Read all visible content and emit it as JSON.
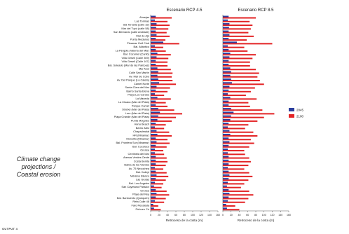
{
  "caption": {
    "lines": [
      "Climate change",
      "projections /",
      "Coastal erosion"
    ]
  },
  "footer": "OUTPUT 4",
  "colors": {
    "s2045": "#2b3f9e",
    "s2100": "#e32426",
    "axis": "#555555",
    "grid": "#999999"
  },
  "chart_data": {
    "type": "bar",
    "orientation": "horizontal",
    "xlabel": "Retroceso de la costa (m)",
    "xlim": [
      0,
      160
    ],
    "xticks": [
      0,
      20,
      40,
      60,
      80,
      100,
      120,
      140,
      160
    ],
    "legend_position": "right",
    "categories": [
      "Almejas",
      "Las Toninas",
      "Sta Teresita (calle 32)",
      "Mar del Tuyú (calle 58)",
      "San Bernardo (calle Andrade)",
      "Mar de Ajó",
      "Punta Medanos",
      "Pinamar Golf Club",
      "Bal. Atlántico",
      "La Pérgola (Valeria del Mar)",
      "Bal. Cozumel (Cariló)",
      "Villa Gesell (Calle 309)",
      "Villa Gesell (Calle 107)",
      "Bal. Soleado (Mar de las Pampas)",
      "Mar Azul",
      "Calle San Martín",
      "Av. Mar de Cobo",
      "Av. Del Parque (La Caleta)",
      "Camet Norte",
      "Santa Clara del Mar",
      "Barrio Santa Elena",
      "Playa Los Cardos",
      "La Maneda",
      "La Cloaca (Mar del Plata)",
      "Parque Camet",
      "Strobel (Mar del Plata)",
      "Luro (Mar del Plata)",
      "Playa Grande (Mar del Plata)",
      "Punta Mogotes",
      "Honu Beach",
      "Barrio Alfar",
      "Chapadmalal",
      "HR (Miramar)",
      "Monolito (Miramar)",
      "Bal. Frontera Sur (Miramar)",
      "Bal. Cocoloco",
      "Orense",
      "Centinela del Mar",
      "Arenas Verdes Oeste",
      "Costa Bonita",
      "Bahía de los Vientos",
      "Av. 75 Necochea",
      "Bal. Kabryl",
      "Médano Blanco",
      "Las Grutas",
      "Bal. Los Angeles",
      "San Cayetano Parador",
      "Orense",
      "Playa del Rey",
      "Bal. Barlovento (Quequén)",
      "Reta Calle 48",
      "Faro Recalada",
      "Pehuen Có"
    ],
    "panels": [
      {
        "title": "Escenario RCP 4.5",
        "series": [
          {
            "name": "2045",
            "values": [
              12,
              10,
              14,
              13,
              12,
              14,
              12,
              30,
              10,
              12,
              16,
              14,
              12,
              12,
              16,
              18,
              16,
              18,
              20,
              14,
              12,
              10,
              16,
              12,
              12,
              18,
              22,
              18,
              16,
              12,
              10,
              14,
              16,
              12,
              14,
              12,
              10,
              10,
              12,
              12,
              12,
              10,
              12,
              14,
              12,
              10,
              8,
              12,
              14,
              12,
              10,
              6,
              8
            ]
          },
          {
            "name": "2100",
            "values": [
              50,
              40,
              45,
              42,
              38,
              45,
              35,
              68,
              30,
              36,
              48,
              42,
              40,
              40,
              48,
              52,
              50,
              52,
              60,
              46,
              40,
              32,
              48,
              36,
              40,
              56,
              75,
              60,
              50,
              36,
              32,
              44,
              50,
              40,
              45,
              38,
              30,
              32,
              38,
              40,
              36,
              30,
              38,
              42,
              36,
              30,
              26,
              38,
              44,
              36,
              32,
              18,
              24
            ]
          }
        ]
      },
      {
        "title": "Escenario RCP 8.5",
        "series": [
          {
            "name": "2045",
            "values": [
              14,
              12,
              16,
              15,
              14,
              16,
              14,
              34,
              12,
              14,
              18,
              16,
              14,
              14,
              18,
              20,
              18,
              20,
              22,
              16,
              14,
              12,
              18,
              14,
              14,
              20,
              26,
              20,
              18,
              14,
              12,
              16,
              18,
              14,
              16,
              14,
              12,
              12,
              14,
              14,
              14,
              12,
              14,
              16,
              14,
              12,
              10,
              14,
              16,
              14,
              12,
              8,
              10
            ]
          },
          {
            "name": "2100",
            "values": [
              80,
              65,
              72,
              68,
              62,
              75,
              58,
              120,
              52,
              60,
              80,
              72,
              66,
              66,
              80,
              88,
              84,
              90,
              100,
              78,
              68,
              56,
              82,
              62,
              66,
              96,
              125,
              100,
              84,
              62,
              54,
              74,
              84,
              68,
              76,
              64,
              52,
              54,
              64,
              68,
              62,
              52,
              64,
              72,
              62,
              52,
              44,
              64,
              74,
              62,
              54,
              30,
              40
            ]
          }
        ]
      }
    ],
    "legend": [
      "2045",
      "2100"
    ]
  }
}
